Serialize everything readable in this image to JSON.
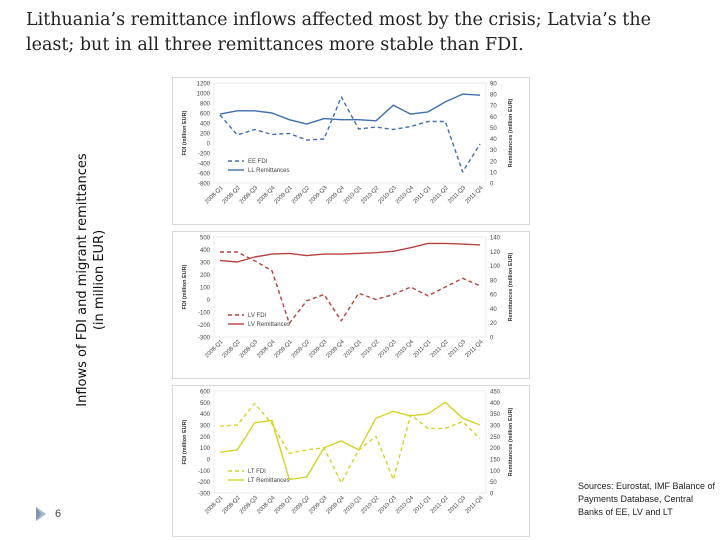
{
  "slide": {
    "title": "Lithuania’s remittance inflows affected most by the crisis; Latvia’s the least; but in all three remittances more stable than FDI.",
    "y_axis_label_line1": "Inflows of FDI and migrant remittances",
    "y_axis_label_line2": "(in million EUR)",
    "page_number": "6",
    "sources": "Sources: Eurostat, IMF Balance of Payments Database, Central Banks of EE, LV and LT",
    "colors": {
      "fdi": "#3f6faf",
      "rem": "#3f6faf"
    }
  },
  "chart_data": [
    {
      "type": "line",
      "categories": [
        "2008-Q1",
        "2008-Q2",
        "2008-Q3",
        "2008-Q4",
        "2009-Q1",
        "2009-Q2",
        "2009-Q3",
        "2009-Q4",
        "2010-Q1",
        "2010-Q2",
        "2010-Q3",
        "2010-Q4",
        "2011-Q1",
        "2011-Q2",
        "2011-Q3",
        "2011-Q4"
      ],
      "ylabel": "FDI (million EUR)",
      "y2label": "Remittances (million EUR)",
      "ylim": [
        -800,
        1200
      ],
      "y2lim": [
        0,
        90
      ],
      "yticks": [
        "1200",
        "1000",
        "800",
        "600",
        "400",
        "200",
        "0",
        "-200",
        "-400",
        "-600",
        "-800"
      ],
      "y2ticks": [
        "90",
        "80",
        "70",
        "60",
        "50",
        "40",
        "30",
        "20",
        "10",
        "0"
      ],
      "color": "#3f6faf",
      "legend_position": "bottom-left",
      "series": [
        {
          "name": "EE FDI",
          "axis": "left",
          "style": "dashed",
          "values": [
            560,
            160,
            270,
            170,
            190,
            60,
            80,
            920,
            280,
            320,
            270,
            330,
            430,
            430,
            -580,
            -20
          ]
        },
        {
          "name": "LL Remittances",
          "axis": "right",
          "style": "solid",
          "values": [
            62,
            65,
            65,
            63,
            57,
            53,
            58,
            57,
            57,
            56,
            70,
            62,
            64,
            73,
            80,
            79
          ]
        }
      ]
    },
    {
      "type": "line",
      "categories": [
        "2008-Q1",
        "2008-Q2",
        "2008-Q3",
        "2008-Q4",
        "2009-Q1",
        "2009-Q2",
        "2009-Q3",
        "2009-Q4",
        "2010-Q1",
        "2010-Q2",
        "2010-Q3",
        "2010-Q4",
        "2011-Q1",
        "2011-Q2",
        "2011-Q3",
        "2011-Q4"
      ],
      "ylabel": "FDI (million EUR)",
      "y2label": "Remittances (million EUR)",
      "ylim": [
        -300,
        500
      ],
      "y2lim": [
        0,
        140
      ],
      "yticks": [
        "500",
        "400",
        "300",
        "200",
        "100",
        "0",
        "-100",
        "-200",
        "-300"
      ],
      "y2ticks": [
        "140",
        "120",
        "100",
        "80",
        "60",
        "40",
        "20",
        "0"
      ],
      "color": "#b8423e",
      "legend_position": "bottom-left",
      "series": [
        {
          "name": "LV FDI",
          "axis": "left",
          "style": "dashed",
          "values": [
            380,
            380,
            310,
            230,
            -190,
            -10,
            40,
            -170,
            50,
            0,
            40,
            100,
            30,
            100,
            170,
            110
          ]
        },
        {
          "name": "LV Remittances",
          "axis": "right",
          "style": "solid",
          "values": [
            107,
            105,
            112,
            116,
            117,
            114,
            116,
            116,
            117,
            118,
            120,
            125,
            131,
            131,
            130,
            129
          ]
        }
      ]
    },
    {
      "type": "line",
      "categories": [
        "2008-Q1",
        "2008-Q2",
        "2008-Q3",
        "2008-Q4",
        "2009-Q1",
        "2009-Q2",
        "2009-Q3",
        "2009-Q4",
        "2010-Q1",
        "2010-Q2",
        "2010-Q3",
        "2010-Q4",
        "2011-Q1",
        "2011-Q2",
        "2011-Q3",
        "2011-Q4"
      ],
      "ylabel": "FDI (million EUR)",
      "y2label": "Remittances (million EUR)",
      "ylim": [
        -300,
        600
      ],
      "y2lim": [
        0,
        450
      ],
      "yticks": [
        "600",
        "500",
        "400",
        "300",
        "200",
        "100",
        "0",
        "-100",
        "-200",
        "-300"
      ],
      "y2ticks": [
        "450",
        "400",
        "350",
        "300",
        "250",
        "200",
        "150",
        "100",
        "50",
        "0"
      ],
      "color": "#d4d428",
      "legend_position": "bottom-left",
      "series": [
        {
          "name": "LT FDI",
          "axis": "left",
          "style": "dashed",
          "values": [
            290,
            300,
            490,
            310,
            50,
            80,
            100,
            -210,
            80,
            200,
            -180,
            390,
            270,
            270,
            330,
            180
          ]
        },
        {
          "name": "LT Remittances",
          "axis": "right",
          "style": "solid",
          "values": [
            180,
            190,
            310,
            320,
            60,
            70,
            200,
            230,
            190,
            330,
            360,
            340,
            350,
            400,
            330,
            300
          ]
        }
      ]
    }
  ]
}
